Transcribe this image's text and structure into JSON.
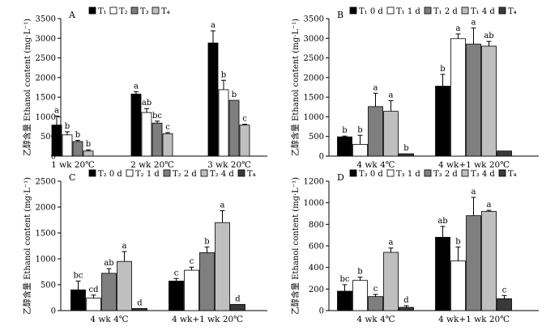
{
  "colors": {
    "fills": [
      "#000000",
      "#ffffff",
      "#7f7f7f",
      "#bfbfbf",
      "#3a3a3a"
    ],
    "stroke": "#000000"
  },
  "chart_data": [
    {
      "type": "bar",
      "panel": "A",
      "ylabel": "乙醇含量 Ethanol content (mg·L⁻¹)",
      "ylim": [
        0,
        3500
      ],
      "yticks": [
        0,
        500,
        1000,
        1500,
        2000,
        2500,
        3000,
        3500
      ],
      "legend_position": "top",
      "categories": [
        "1 wk 20℃",
        "2 wk 20℃",
        "3 wk 20℃"
      ],
      "series": [
        {
          "name": "T₁",
          "values": [
            790,
            1580,
            2880
          ],
          "errors": [
            230,
            60,
            310
          ],
          "labels": [
            "a",
            "a",
            "a"
          ]
        },
        {
          "name": "T₂",
          "values": [
            540,
            1110,
            1690
          ],
          "errors": [
            80,
            100,
            240
          ],
          "labels": [
            "b",
            "ab",
            "b"
          ]
        },
        {
          "name": "T₃",
          "values": [
            370,
            840,
            1420
          ],
          "errors": [
            30,
            50,
            0
          ],
          "labels": [
            "b",
            "bc",
            "b"
          ]
        },
        {
          "name": "T₄",
          "values": [
            130,
            570,
            790
          ],
          "errors": [
            30,
            30,
            20
          ],
          "labels": [
            "b",
            "c",
            "c"
          ]
        }
      ]
    },
    {
      "type": "bar",
      "panel": "B",
      "ylabel": "乙醇含量 Ethanol content (mg·L⁻¹)",
      "ylim": [
        0,
        3500
      ],
      "yticks": [
        0,
        500,
        1000,
        1500,
        2000,
        2500,
        3000,
        3500
      ],
      "legend_position": "top",
      "categories": [
        "4 wk 4℃",
        "4 wk+1 wk 20℃"
      ],
      "series": [
        {
          "name": "T₁ 0 d",
          "values": [
            490,
            1780
          ],
          "errors": [
            20,
            300
          ],
          "labels": [
            "b",
            "b"
          ]
        },
        {
          "name": "T₁ 1 d",
          "values": [
            300,
            2990
          ],
          "errors": [
            230,
            120
          ],
          "labels": [
            "b",
            "a"
          ]
        },
        {
          "name": "T₁ 2 d",
          "values": [
            1260,
            2850
          ],
          "errors": [
            340,
            410
          ],
          "labels": [
            "a",
            "a"
          ]
        },
        {
          "name": "T₁ 4 d",
          "values": [
            1140,
            2800
          ],
          "errors": [
            270,
            120
          ],
          "labels": [
            "a",
            "ab"
          ]
        },
        {
          "name": "T₄",
          "values": [
            60,
            130
          ],
          "errors": [
            0,
            0
          ],
          "labels": [
            "b",
            ""
          ]
        }
      ]
    },
    {
      "type": "bar",
      "panel": "C",
      "ylabel": "乙醇含量 Ethanol content (mg·L⁻¹)",
      "ylim": [
        0,
        2500
      ],
      "yticks": [
        0,
        500,
        1000,
        1500,
        2000,
        2500
      ],
      "legend_position": "top",
      "categories": [
        "4 wk 4℃",
        "4 wk+1 wk 20℃"
      ],
      "series": [
        {
          "name": "T₂ 0 d",
          "values": [
            400,
            570
          ],
          "errors": [
            170,
            50
          ],
          "labels": [
            "bc",
            "c"
          ]
        },
        {
          "name": "T₂ 1 d",
          "values": [
            240,
            780
          ],
          "errors": [
            60,
            60
          ],
          "labels": [
            "cd",
            "c"
          ]
        },
        {
          "name": "T₂ 2 d",
          "values": [
            720,
            1120
          ],
          "errors": [
            90,
            110
          ],
          "labels": [
            "ab",
            "b"
          ]
        },
        {
          "name": "T₂ 4 d",
          "values": [
            950,
            1700
          ],
          "errors": [
            190,
            230
          ],
          "labels": [
            "a",
            "a"
          ]
        },
        {
          "name": "T₄",
          "values": [
            40,
            120
          ],
          "errors": [
            0,
            0
          ],
          "labels": [
            "d",
            "d"
          ]
        }
      ]
    },
    {
      "type": "bar",
      "panel": "D",
      "ylabel": "乙醇含量 Ethanol content (mg·L⁻¹)",
      "ylim": [
        0,
        1200
      ],
      "yticks": [
        0,
        200,
        400,
        600,
        800,
        1000,
        1200
      ],
      "legend_position": "top",
      "categories": [
        "4 wk 4℃",
        "4 wk+1 wk 20℃"
      ],
      "series": [
        {
          "name": "T₃ 0 d",
          "values": [
            180,
            680
          ],
          "errors": [
            60,
            100
          ],
          "labels": [
            "bc",
            "ab"
          ]
        },
        {
          "name": "T₃ 1 d",
          "values": [
            280,
            460
          ],
          "errors": [
            30,
            130
          ],
          "labels": [
            "b",
            "b"
          ]
        },
        {
          "name": "T₃ 2 d",
          "values": [
            130,
            880
          ],
          "errors": [
            20,
            170
          ],
          "labels": [
            "c",
            "a"
          ]
        },
        {
          "name": "T₃ 4 d",
          "values": [
            540,
            920
          ],
          "errors": [
            40,
            10
          ],
          "labels": [
            "a",
            "a"
          ]
        },
        {
          "name": "T₄",
          "values": [
            30,
            110
          ],
          "errors": [
            15,
            30
          ],
          "labels": [
            "d",
            "c"
          ]
        }
      ]
    }
  ]
}
